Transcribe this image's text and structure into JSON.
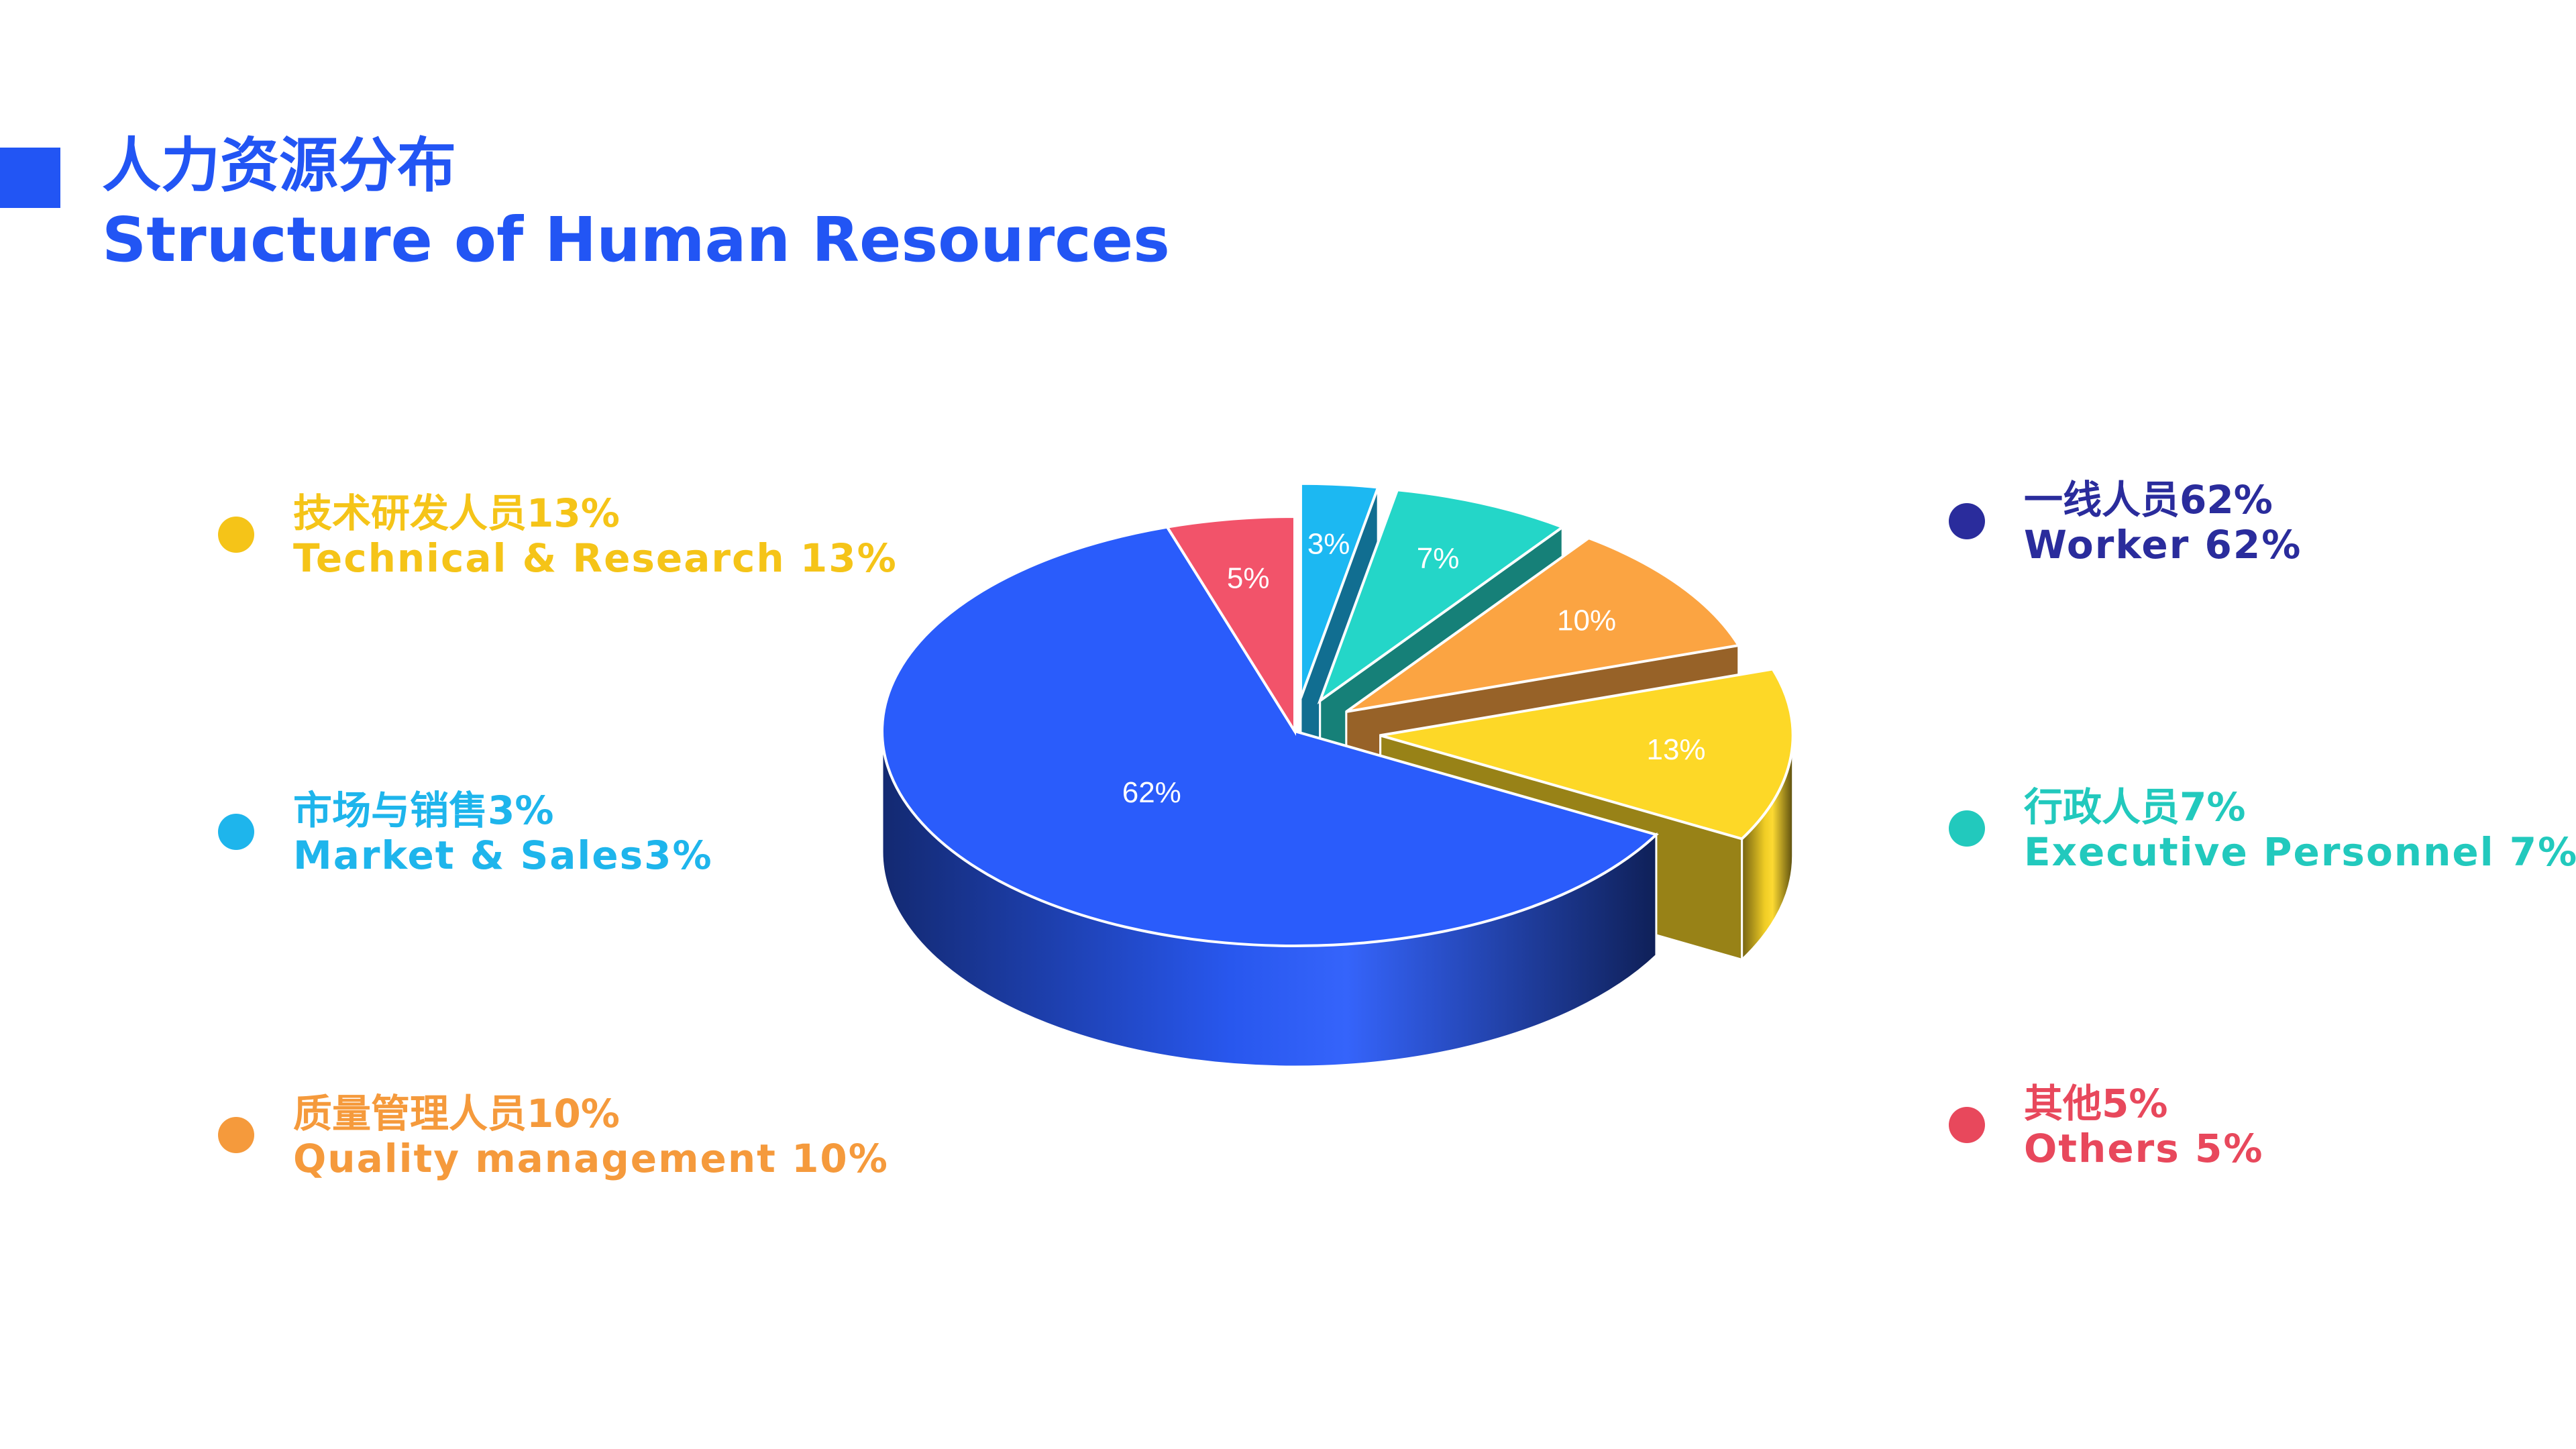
{
  "header": {
    "title_cn": "人力资源分布",
    "title_en": "Structure of Human Resources",
    "accent_color": "#2255f4"
  },
  "legend": [
    {
      "id": "tech",
      "cn": "技术研发人员13%",
      "en": "Technical & Research 13%",
      "color": "#f5c418"
    },
    {
      "id": "market",
      "cn": "市场与销售3%",
      "en": "Market & Sales3%",
      "color": "#1eb5ec"
    },
    {
      "id": "quality",
      "cn": "质量管理人员10%",
      "en": "Quality management 10%",
      "color": "#f59a3c"
    },
    {
      "id": "worker",
      "cn": "一线人员62%",
      "en": "Worker 62%",
      "color": "#2a2c9c"
    },
    {
      "id": "exec",
      "cn": "行政人员7%",
      "en": "Executive Personnel 7%",
      "color": "#22c9bd"
    },
    {
      "id": "others",
      "cn": "其他5%",
      "en": "Others 5%",
      "color": "#e8485c"
    }
  ],
  "chart_data": {
    "type": "pie",
    "categories": [
      "一线人员",
      "其他",
      "市场与销售",
      "行政人员",
      "质量管理人员",
      "技术研发人员"
    ],
    "values": [
      62,
      5,
      3,
      7,
      10,
      13
    ],
    "labels": [
      "62%",
      "5%",
      "3%",
      "7%",
      "10%",
      "13%"
    ],
    "colors": [
      "#2a5cfb",
      "#f2536a",
      "#1cb8f2",
      "#24d6c8",
      "#fba442",
      "#fdd827"
    ],
    "exploded": [
      false,
      false,
      true,
      true,
      true,
      true
    ],
    "style": "3d"
  }
}
